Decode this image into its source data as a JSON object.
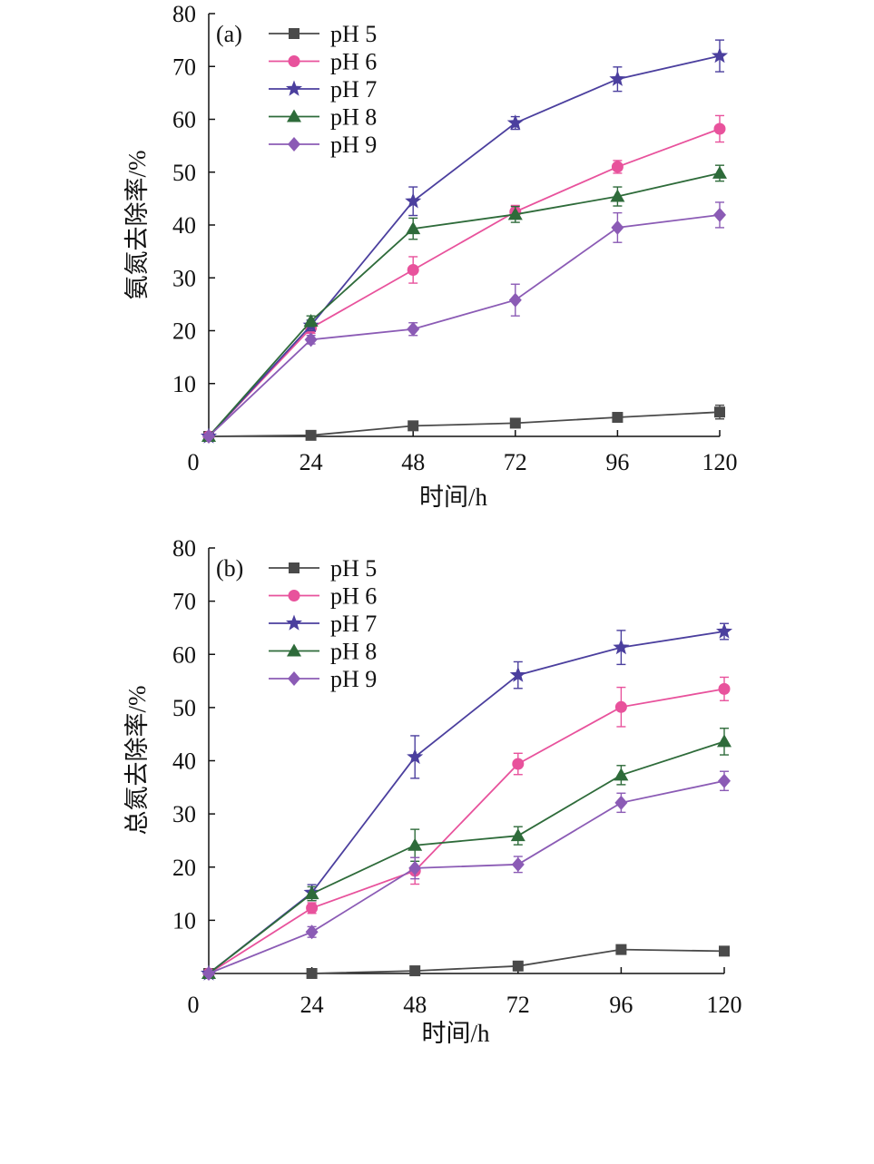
{
  "chart_data": [
    {
      "type": "line",
      "panel_label": "(a)",
      "xlabel": "时间/h",
      "ylabel": "氨氮去除率/%",
      "x": [
        0,
        24,
        48,
        72,
        96,
        120
      ],
      "xticks": [
        "0",
        "24",
        "48",
        "72",
        "96",
        "120"
      ],
      "yticks": [
        "10",
        "20",
        "30",
        "40",
        "50",
        "60",
        "70",
        "80"
      ],
      "xlim": [
        0,
        120
      ],
      "ylim": [
        0,
        80
      ],
      "legend_position": "top-left",
      "grid": false,
      "series": [
        {
          "name": "pH 5",
          "marker": "square",
          "color": "#4a4a4a",
          "values": [
            0,
            0.2,
            2.0,
            2.5,
            3.6,
            4.6
          ],
          "errors": [
            0,
            0.3,
            0.5,
            0.5,
            0.7,
            1.3
          ]
        },
        {
          "name": "pH 6",
          "marker": "circle",
          "color": "#e8529c",
          "values": [
            0,
            20.5,
            31.5,
            42.5,
            51.0,
            58.2
          ],
          "errors": [
            0,
            1.0,
            2.5,
            1.2,
            1.2,
            2.5
          ]
        },
        {
          "name": "pH 7",
          "marker": "star",
          "color": "#4b3f9e",
          "values": [
            0,
            21.0,
            44.5,
            59.3,
            67.6,
            72.0
          ],
          "errors": [
            0,
            1.0,
            2.7,
            1.2,
            2.3,
            3.0
          ]
        },
        {
          "name": "pH 8",
          "marker": "triangle",
          "color": "#2e6b3a",
          "values": [
            0,
            21.8,
            39.3,
            42.0,
            45.4,
            49.8
          ],
          "errors": [
            0,
            1.0,
            2.0,
            1.5,
            1.8,
            1.5
          ]
        },
        {
          "name": "pH 9",
          "marker": "diamond",
          "color": "#8b5bb5",
          "values": [
            0,
            18.3,
            20.3,
            25.8,
            39.5,
            41.9
          ],
          "errors": [
            0,
            0.8,
            1.2,
            3.0,
            2.8,
            2.4
          ]
        }
      ]
    },
    {
      "type": "line",
      "panel_label": "(b)",
      "xlabel": "时间/h",
      "ylabel": "总氮去除率/%",
      "x": [
        0,
        24,
        48,
        72,
        96,
        120
      ],
      "xticks": [
        "0",
        "24",
        "48",
        "72",
        "96",
        "120"
      ],
      "yticks": [
        "10",
        "20",
        "30",
        "40",
        "50",
        "60",
        "70",
        "80"
      ],
      "xlim": [
        0,
        120
      ],
      "ylim": [
        0,
        80
      ],
      "legend_position": "top-left",
      "grid": false,
      "series": [
        {
          "name": "pH 5",
          "marker": "square",
          "color": "#4a4a4a",
          "values": [
            0,
            0,
            0.5,
            1.4,
            4.5,
            4.2
          ],
          "errors": [
            0,
            0.2,
            0.3,
            0.3,
            0.5,
            0.5
          ]
        },
        {
          "name": "pH 6",
          "marker": "circle",
          "color": "#e8529c",
          "values": [
            0,
            12.3,
            19.3,
            39.4,
            50.1,
            53.5
          ],
          "errors": [
            0,
            1.0,
            2.5,
            2.0,
            3.7,
            2.2
          ]
        },
        {
          "name": "pH 7",
          "marker": "star",
          "color": "#4b3f9e",
          "values": [
            0,
            15.2,
            40.7,
            56.1,
            61.3,
            64.3
          ],
          "errors": [
            0,
            1.5,
            4.0,
            2.5,
            3.2,
            1.5
          ]
        },
        {
          "name": "pH 8",
          "marker": "triangle",
          "color": "#2e6b3a",
          "values": [
            0,
            15.0,
            24.1,
            25.9,
            37.3,
            43.6
          ],
          "errors": [
            0,
            1.3,
            3.0,
            1.7,
            1.8,
            2.5
          ]
        },
        {
          "name": "pH 9",
          "marker": "diamond",
          "color": "#8b5bb5",
          "values": [
            0,
            7.8,
            19.8,
            20.5,
            32.1,
            36.2
          ],
          "errors": [
            0,
            1.0,
            2.0,
            1.5,
            1.8,
            1.8
          ]
        }
      ]
    }
  ]
}
